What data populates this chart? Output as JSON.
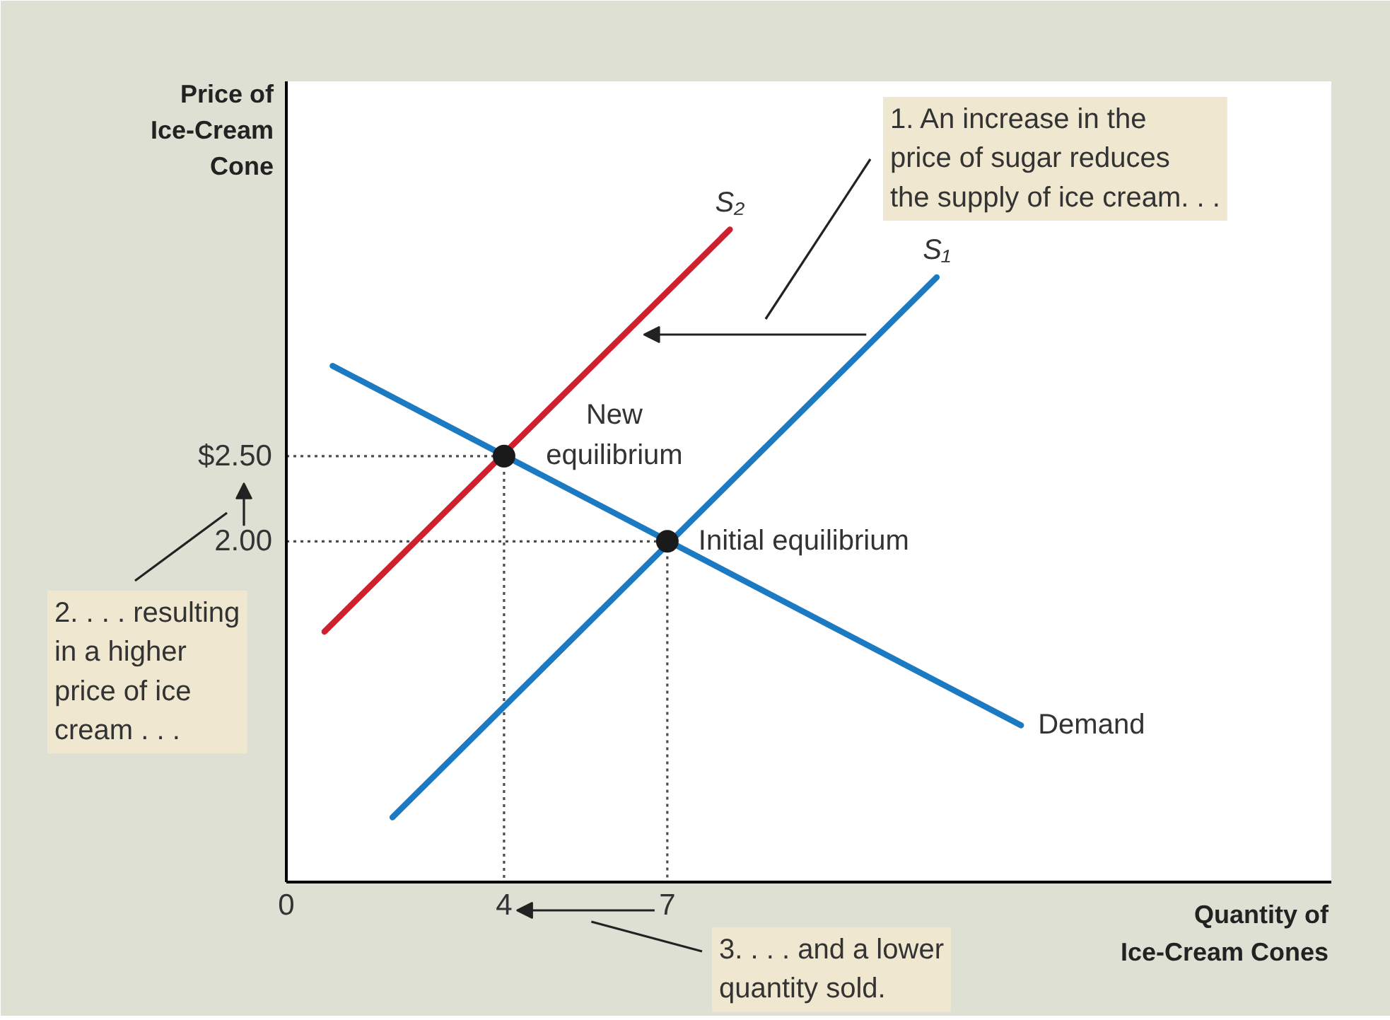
{
  "chart_data": {
    "type": "line",
    "xlabel": "Quantity of Ice-Cream Cones",
    "ylabel": "Price of Ice-Cream Cone",
    "xlim": [
      0,
      19.2
    ],
    "ylim": [
      0,
      4.7
    ],
    "xticks": [
      0,
      4,
      7
    ],
    "yticks": [
      {
        "value": 2,
        "label": "2.00"
      },
      {
        "value": 2.5,
        "label": "$2.50"
      }
    ],
    "series": [
      {
        "x": [
          0,
          4,
          4
        ],
        "values": [
          2.5,
          2.5,
          0
        ],
        "color": "#4d4d4d",
        "line_style": "dotted"
      },
      {
        "x": [
          0,
          7,
          7
        ],
        "values": [
          2,
          2,
          0
        ],
        "color": "#4d4d4d",
        "line_style": "dotted"
      },
      {
        "name": "Demand",
        "x": [
          0.85,
          13.5
        ],
        "values": [
          3.03,
          0.92
        ],
        "color": "#1b7ac2"
      },
      {
        "name": "S₁",
        "x": [
          1.95,
          11.95
        ],
        "values": [
          0.38,
          3.55
        ],
        "color": "#1b7ac2"
      },
      {
        "name": "S₂",
        "x": [
          0.7,
          8.15
        ],
        "values": [
          1.47,
          3.83
        ],
        "color": "#d0202e"
      },
      {
        "type": "scatter",
        "x": [
          4,
          7
        ],
        "values": [
          2.5,
          2
        ],
        "color": "#1a1a1a",
        "marker": "circle"
      }
    ],
    "annotations": [
      "1. An increase in the price of sugar reduces the supply of ice cream. . .",
      "2. . . . resulting in a higher price of ice cream . . .",
      "3. . . . and a lower quantity sold.",
      {
        "text": "New equilibrium",
        "x": 4,
        "y": 2.5
      },
      {
        "text": "Initial equilibrium",
        "x": 7,
        "y": 2
      }
    ]
  }
}
